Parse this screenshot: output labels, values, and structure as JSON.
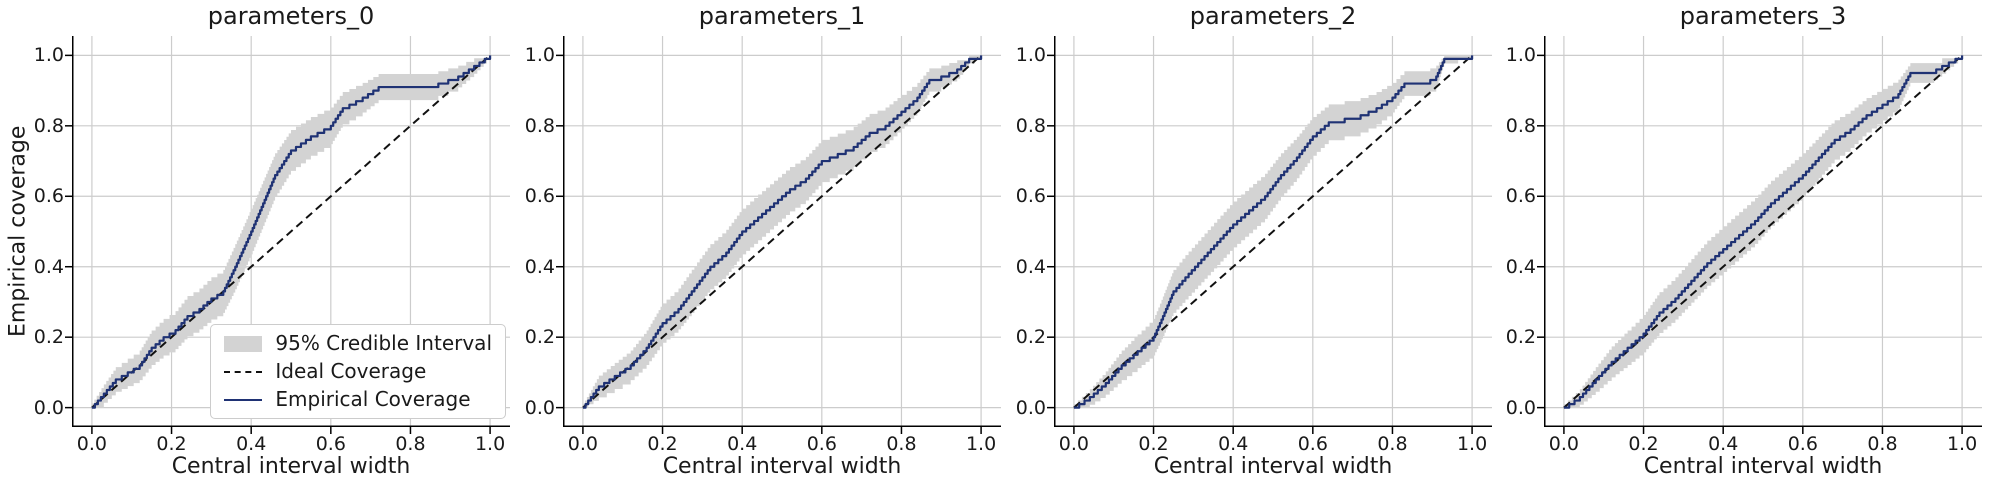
{
  "figure": {
    "xlabel": "Central interval width",
    "ylabel": "Empirical coverage",
    "background": "#ffffff"
  },
  "style": {
    "band_color": "#d3d3d3",
    "ideal_color": "#111111",
    "empirical_color": "#1f3274",
    "grid_color": "#cccccc",
    "spine_color": "#000000",
    "tick_color": "#000000",
    "text_color": "#1a1a1a"
  },
  "legend": {
    "items": [
      {
        "label": "95% Credible Interval",
        "type": "patch",
        "color": "#d3d3d3"
      },
      {
        "label": "Ideal Coverage",
        "type": "dashed-line",
        "color": "#111111"
      },
      {
        "label": "Empirical Coverage",
        "type": "line",
        "color": "#1f3274"
      }
    ]
  },
  "chart_data": {
    "type": "line",
    "xlabel": "Central interval width",
    "ylabel": "Empirical coverage",
    "xlim": [
      0,
      1
    ],
    "ylim": [
      0,
      1
    ],
    "grid": true,
    "legend_position": "lower right of first subplot",
    "xtick_values": [
      0,
      0.2,
      0.4,
      0.6,
      0.8,
      1.0
    ],
    "xtick_labels": [
      "0.0",
      "0.2",
      "0.4",
      "0.6",
      "0.8",
      "1.0"
    ],
    "ytick_values": [
      0,
      0.2,
      0.4,
      0.6,
      0.8,
      1.0
    ],
    "ytick_labels": [
      "0.0",
      "0.2",
      "0.4",
      "0.6",
      "0.8",
      "1.0"
    ],
    "ideal_line": {
      "name": "Ideal Coverage",
      "points": [
        [
          0,
          0
        ],
        [
          1,
          1
        ]
      ]
    },
    "band_name": "95% Credible Interval",
    "series_name": "Empirical Coverage",
    "point_format": "[central_interval_width, empirical_coverage, ci_halfwidth]",
    "subplots": [
      {
        "title": "parameters_0",
        "points": [
          [
            0.0,
            0.0,
            0.012
          ],
          [
            0.03,
            0.04,
            0.026
          ],
          [
            0.06,
            0.08,
            0.035
          ],
          [
            0.09,
            0.1,
            0.039
          ],
          [
            0.12,
            0.12,
            0.042
          ],
          [
            0.15,
            0.17,
            0.049
          ],
          [
            0.18,
            0.2,
            0.052
          ],
          [
            0.21,
            0.22,
            0.054
          ],
          [
            0.24,
            0.26,
            0.057
          ],
          [
            0.27,
            0.28,
            0.058
          ],
          [
            0.3,
            0.31,
            0.06
          ],
          [
            0.33,
            0.33,
            0.061
          ],
          [
            0.36,
            0.4,
            0.064
          ],
          [
            0.4,
            0.5,
            0.065
          ],
          [
            0.43,
            0.58,
            0.064
          ],
          [
            0.46,
            0.66,
            0.062
          ],
          [
            0.5,
            0.73,
            0.058
          ],
          [
            0.55,
            0.77,
            0.055
          ],
          [
            0.6,
            0.8,
            0.052
          ],
          [
            0.63,
            0.85,
            0.046
          ],
          [
            0.68,
            0.88,
            0.042
          ],
          [
            0.72,
            0.91,
            0.037
          ],
          [
            0.8,
            0.91,
            0.037
          ],
          [
            0.87,
            0.92,
            0.035
          ],
          [
            0.92,
            0.94,
            0.031
          ],
          [
            0.96,
            0.97,
            0.022
          ],
          [
            1.0,
            1.0,
            0.004
          ]
        ]
      },
      {
        "title": "parameters_1",
        "points": [
          [
            0.0,
            0.0,
            0.01
          ],
          [
            0.04,
            0.06,
            0.031
          ],
          [
            0.08,
            0.09,
            0.037
          ],
          [
            0.12,
            0.12,
            0.042
          ],
          [
            0.16,
            0.17,
            0.049
          ],
          [
            0.2,
            0.24,
            0.056
          ],
          [
            0.24,
            0.28,
            0.058
          ],
          [
            0.28,
            0.34,
            0.062
          ],
          [
            0.32,
            0.4,
            0.064
          ],
          [
            0.36,
            0.44,
            0.065
          ],
          [
            0.4,
            0.5,
            0.065
          ],
          [
            0.44,
            0.54,
            0.065
          ],
          [
            0.48,
            0.58,
            0.064
          ],
          [
            0.52,
            0.62,
            0.063
          ],
          [
            0.56,
            0.65,
            0.062
          ],
          [
            0.6,
            0.7,
            0.06
          ],
          [
            0.64,
            0.72,
            0.058
          ],
          [
            0.68,
            0.74,
            0.057
          ],
          [
            0.72,
            0.78,
            0.054
          ],
          [
            0.76,
            0.8,
            0.052
          ],
          [
            0.8,
            0.84,
            0.048
          ],
          [
            0.84,
            0.88,
            0.042
          ],
          [
            0.87,
            0.93,
            0.033
          ],
          [
            0.9,
            0.94,
            0.031
          ],
          [
            0.94,
            0.96,
            0.026
          ],
          [
            0.97,
            0.99,
            0.013
          ],
          [
            1.0,
            1.0,
            0.004
          ]
        ]
      },
      {
        "title": "parameters_2",
        "points": [
          [
            0.0,
            0.0,
            0.01
          ],
          [
            0.04,
            0.03,
            0.022
          ],
          [
            0.08,
            0.07,
            0.033
          ],
          [
            0.12,
            0.12,
            0.042
          ],
          [
            0.16,
            0.16,
            0.048
          ],
          [
            0.2,
            0.2,
            0.052
          ],
          [
            0.22,
            0.25,
            0.056
          ],
          [
            0.25,
            0.33,
            0.061
          ],
          [
            0.28,
            0.37,
            0.063
          ],
          [
            0.32,
            0.42,
            0.064
          ],
          [
            0.36,
            0.47,
            0.065
          ],
          [
            0.4,
            0.52,
            0.065
          ],
          [
            0.44,
            0.56,
            0.065
          ],
          [
            0.48,
            0.6,
            0.064
          ],
          [
            0.52,
            0.66,
            0.062
          ],
          [
            0.56,
            0.71,
            0.059
          ],
          [
            0.6,
            0.77,
            0.055
          ],
          [
            0.64,
            0.81,
            0.051
          ],
          [
            0.68,
            0.82,
            0.05
          ],
          [
            0.72,
            0.83,
            0.049
          ],
          [
            0.76,
            0.85,
            0.046
          ],
          [
            0.8,
            0.88,
            0.042
          ],
          [
            0.83,
            0.92,
            0.035
          ],
          [
            0.88,
            0.92,
            0.035
          ],
          [
            0.91,
            0.94,
            0.031
          ],
          [
            0.93,
            0.99,
            0.013
          ],
          [
            1.0,
            1.0,
            0.004
          ]
        ]
      },
      {
        "title": "parameters_3",
        "points": [
          [
            0.0,
            0.0,
            0.01
          ],
          [
            0.04,
            0.03,
            0.022
          ],
          [
            0.08,
            0.08,
            0.035
          ],
          [
            0.12,
            0.13,
            0.044
          ],
          [
            0.16,
            0.17,
            0.049
          ],
          [
            0.2,
            0.21,
            0.053
          ],
          [
            0.24,
            0.27,
            0.058
          ],
          [
            0.28,
            0.31,
            0.06
          ],
          [
            0.32,
            0.36,
            0.062
          ],
          [
            0.36,
            0.41,
            0.064
          ],
          [
            0.4,
            0.45,
            0.065
          ],
          [
            0.44,
            0.49,
            0.065
          ],
          [
            0.48,
            0.53,
            0.065
          ],
          [
            0.52,
            0.58,
            0.064
          ],
          [
            0.56,
            0.62,
            0.063
          ],
          [
            0.6,
            0.66,
            0.062
          ],
          [
            0.64,
            0.71,
            0.059
          ],
          [
            0.68,
            0.76,
            0.056
          ],
          [
            0.72,
            0.79,
            0.053
          ],
          [
            0.76,
            0.83,
            0.049
          ],
          [
            0.8,
            0.86,
            0.045
          ],
          [
            0.84,
            0.89,
            0.041
          ],
          [
            0.87,
            0.95,
            0.028
          ],
          [
            0.92,
            0.95,
            0.028
          ],
          [
            0.95,
            0.97,
            0.022
          ],
          [
            1.0,
            1.0,
            0.004
          ]
        ]
      }
    ]
  }
}
